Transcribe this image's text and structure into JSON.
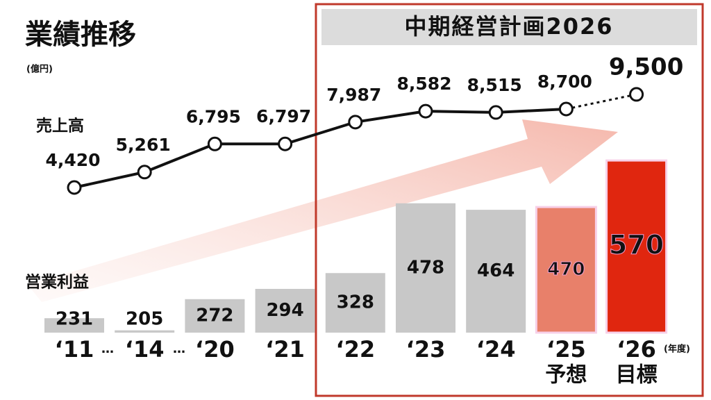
{
  "chart_data": {
    "type": "combo",
    "title": "業績推移",
    "unit": "(億円)",
    "x_unit": "(年度)",
    "plan_title": "中期経営計画2026",
    "categories": [
      "‘11",
      "‘14",
      "‘20",
      "‘21",
      "‘22",
      "‘23",
      "‘24",
      "‘25",
      "‘26"
    ],
    "category_notes": [
      null,
      null,
      null,
      null,
      null,
      null,
      null,
      "予想",
      "目標"
    ],
    "gap_marker": "…",
    "series": [
      {
        "name": "売上高",
        "type": "line",
        "color": "#111111",
        "highlight_color": "#e0260f",
        "values": [
          4420,
          5261,
          6795,
          6797,
          7987,
          8582,
          8515,
          8700,
          9500
        ],
        "value_labels": [
          "4,420",
          "5,261",
          "6,795",
          "6,797",
          "7,987",
          "8,582",
          "8,515",
          "8,700",
          "9,500"
        ]
      },
      {
        "name": "営業利益",
        "type": "bar",
        "colors": [
          "#c8c8c8",
          "#c8c8c8",
          "#c8c8c8",
          "#c8c8c8",
          "#c8c8c8",
          "#c8c8c8",
          "#c8c8c8",
          "#e8806a",
          "#e0260f"
        ],
        "values": [
          231,
          205,
          272,
          294,
          328,
          478,
          464,
          470,
          570
        ]
      }
    ]
  }
}
